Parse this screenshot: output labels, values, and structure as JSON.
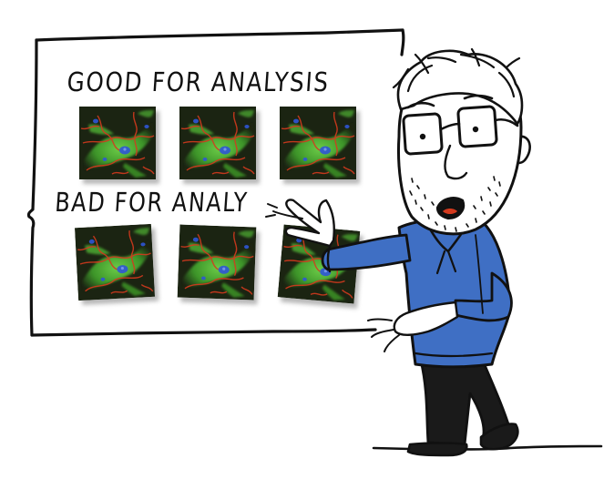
{
  "board": {
    "heading_good": "GOOD FOR ANALYSIS",
    "heading_bad": "BAD FOR ANALY"
  },
  "colors": {
    "ink": "#111111",
    "shirt": "#3f6fc4",
    "pants": "#1a1a1a",
    "cell_background": "#1b2412",
    "actin": "#d43a1e",
    "tubulin": "#5cc23a",
    "nucleus": "#2f56d6",
    "shadow": "#9a9a9a"
  },
  "images": {
    "good": [
      {
        "tilt_deg": 0
      },
      {
        "tilt_deg": 0
      },
      {
        "tilt_deg": 0
      }
    ],
    "bad": [
      {
        "tilt_deg": -3
      },
      {
        "tilt_deg": 2
      },
      {
        "tilt_deg": 5
      }
    ]
  }
}
